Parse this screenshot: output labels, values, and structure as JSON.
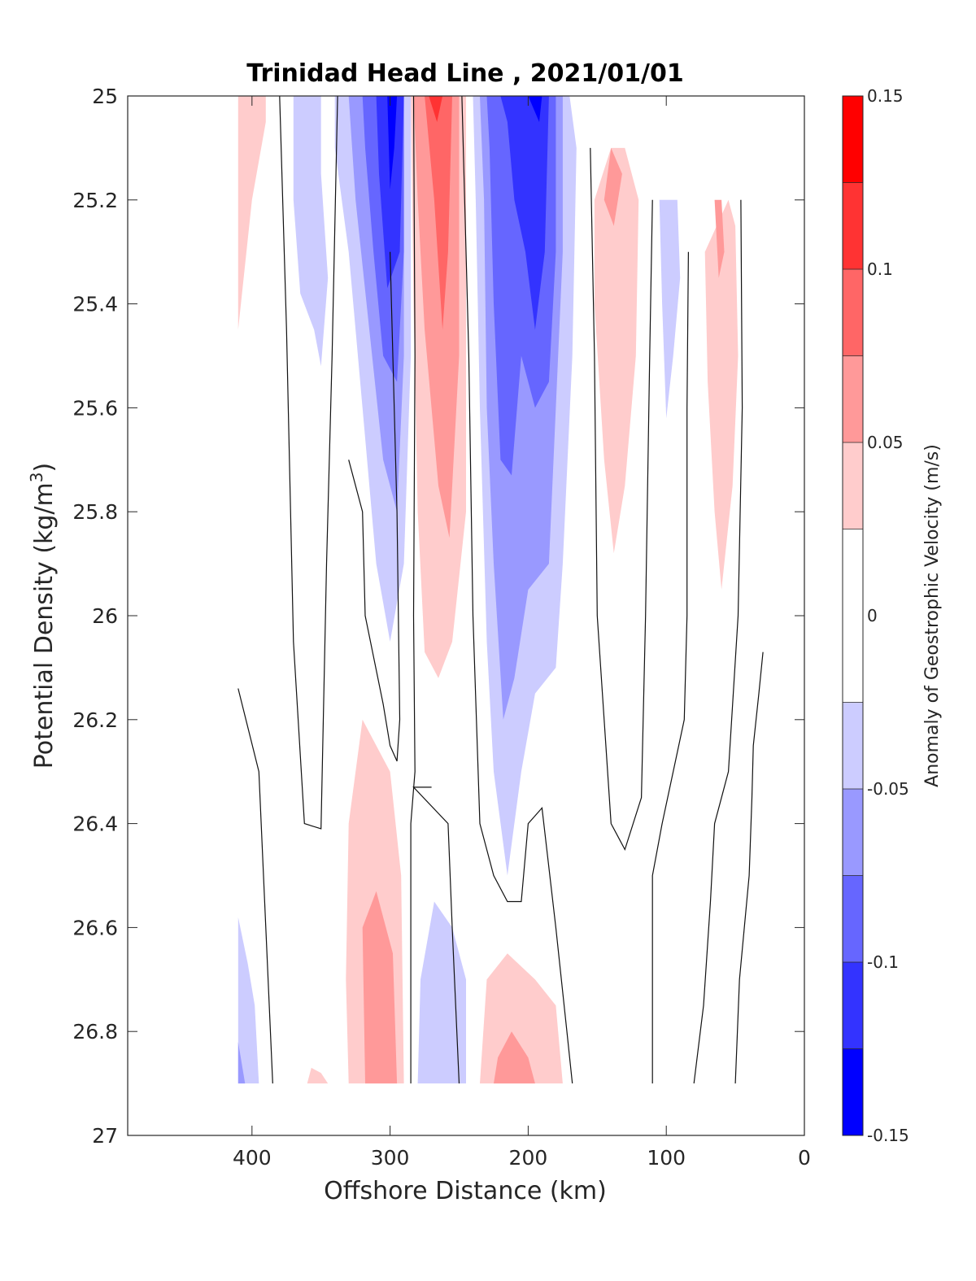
{
  "chart_data": {
    "type": "contourf",
    "title": "Trinidad Head Line , 2021/01/01",
    "xlabel": "Offshore Distance (km)",
    "ylabel_main": "Potential Density (kg/m",
    "ylabel_sup": "3",
    "ylabel_close": ")",
    "xlim": [
      490,
      0
    ],
    "x_reversed": true,
    "ylim": [
      25,
      27
    ],
    "y_reversed": true,
    "x_ticks": [
      400,
      300,
      200,
      100,
      0
    ],
    "y_ticks": [
      25,
      25.2,
      25.4,
      25.6,
      25.8,
      26,
      26.2,
      26.4,
      26.6,
      26.8,
      27
    ],
    "y_tick_labels": [
      "25",
      "25.2",
      "25.4",
      "25.6",
      "25.8",
      "26",
      "26.2",
      "26.4",
      "26.6",
      "26.8",
      "27"
    ],
    "colorbar": {
      "title": "Anomaly of Geostrophic Velocity (m/s)",
      "range": [
        -0.15,
        0.15
      ],
      "ticks": [
        0.15,
        0.1,
        0.05,
        0,
        -0.05,
        -0.1,
        -0.15
      ],
      "tick_labels": [
        "0.15",
        "0.1",
        "0.05",
        "0",
        "-0.05",
        "-0.1",
        "-0.15"
      ],
      "levels": [
        -0.15,
        -0.125,
        -0.1,
        -0.075,
        -0.05,
        -0.025,
        0.025,
        0.05,
        0.075,
        0.1,
        0.125,
        0.15
      ],
      "colors": [
        "#0000ff",
        "#3333ff",
        "#6666ff",
        "#9999ff",
        "#ccccff",
        "#ffffff",
        "#ffcccc",
        "#ff9999",
        "#ff6666",
        "#ff3333",
        "#ff0000"
      ]
    },
    "regions": [
      {
        "level": 0.0375,
        "pts": [
          [
            410,
            25
          ],
          [
            390,
            25
          ],
          [
            390,
            25.05
          ],
          [
            400,
            25.2
          ],
          [
            410,
            25.45
          ]
        ]
      },
      {
        "level": -0.0375,
        "pts": [
          [
            370,
            25
          ],
          [
            350,
            25
          ],
          [
            350,
            25.15
          ],
          [
            345,
            25.35
          ],
          [
            350,
            25.52
          ],
          [
            355,
            25.45
          ],
          [
            365,
            25.38
          ],
          [
            370,
            25.2
          ]
        ]
      },
      {
        "level": -0.0375,
        "pts": [
          [
            340,
            25
          ],
          [
            285,
            25
          ],
          [
            285,
            25.5
          ],
          [
            290,
            25.9
          ],
          [
            300,
            26.05
          ],
          [
            310,
            25.9
          ],
          [
            320,
            25.6
          ],
          [
            330,
            25.3
          ],
          [
            340,
            25.1
          ]
        ]
      },
      {
        "level": -0.0625,
        "pts": [
          [
            330,
            25
          ],
          [
            290,
            25
          ],
          [
            290,
            25.5
          ],
          [
            295,
            25.8
          ],
          [
            305,
            25.7
          ],
          [
            315,
            25.45
          ],
          [
            325,
            25.2
          ]
        ]
      },
      {
        "level": -0.0875,
        "pts": [
          [
            320,
            25
          ],
          [
            290,
            25
          ],
          [
            290,
            25.3
          ],
          [
            295,
            25.55
          ],
          [
            305,
            25.5
          ],
          [
            312,
            25.3
          ],
          [
            318,
            25.1
          ]
        ]
      },
      {
        "level": -0.1125,
        "pts": [
          [
            310,
            25
          ],
          [
            290,
            25
          ],
          [
            293,
            25.3
          ],
          [
            302,
            25.37
          ],
          [
            308,
            25.15
          ]
        ]
      },
      {
        "level": -0.1375,
        "pts": [
          [
            302,
            25
          ],
          [
            295,
            25
          ],
          [
            297,
            25.1
          ],
          [
            300,
            25.18
          ]
        ]
      },
      {
        "level": 0.0375,
        "pts": [
          [
            285,
            25
          ],
          [
            245,
            25
          ],
          [
            245,
            25.8
          ],
          [
            255,
            26.05
          ],
          [
            265,
            26.12
          ],
          [
            275,
            26.07
          ],
          [
            280,
            25.8
          ],
          [
            283,
            25.4
          ]
        ]
      },
      {
        "level": 0.0625,
        "pts": [
          [
            283,
            25
          ],
          [
            250,
            25
          ],
          [
            250,
            25.5
          ],
          [
            257,
            25.85
          ],
          [
            265,
            25.75
          ],
          [
            275,
            25.45
          ],
          [
            280,
            25.2
          ]
        ]
      },
      {
        "level": 0.0875,
        "pts": [
          [
            275,
            25
          ],
          [
            255,
            25
          ],
          [
            258,
            25.3
          ],
          [
            262,
            25.45
          ],
          [
            268,
            25.2
          ]
        ]
      },
      {
        "level": 0.1125,
        "pts": [
          [
            272,
            25
          ],
          [
            262,
            25
          ],
          [
            266,
            25.05
          ]
        ]
      },
      {
        "level": -0.0375,
        "pts": [
          [
            240,
            25
          ],
          [
            170,
            25
          ],
          [
            165,
            25.1
          ],
          [
            168,
            25.5
          ],
          [
            175,
            25.9
          ],
          [
            180,
            26.1
          ],
          [
            195,
            26.15
          ],
          [
            205,
            26.3
          ],
          [
            210,
            26.4
          ],
          [
            215,
            26.5
          ],
          [
            225,
            26.3
          ],
          [
            230,
            26.05
          ],
          [
            235,
            25.6
          ],
          [
            238,
            25.2
          ]
        ]
      },
      {
        "level": -0.0625,
        "pts": [
          [
            235,
            25
          ],
          [
            175,
            25
          ],
          [
            175,
            25.3
          ],
          [
            180,
            25.6
          ],
          [
            185,
            25.9
          ],
          [
            200,
            25.95
          ],
          [
            210,
            26.12
          ],
          [
            218,
            26.2
          ],
          [
            225,
            25.9
          ],
          [
            230,
            25.6
          ],
          [
            232,
            25.2
          ]
        ]
      },
      {
        "level": -0.0875,
        "pts": [
          [
            230,
            25
          ],
          [
            180,
            25
          ],
          [
            180,
            25.3
          ],
          [
            185,
            25.55
          ],
          [
            195,
            25.6
          ],
          [
            205,
            25.5
          ],
          [
            212,
            25.73
          ],
          [
            220,
            25.7
          ],
          [
            225,
            25.4
          ],
          [
            228,
            25.1
          ]
        ]
      },
      {
        "level": -0.1125,
        "pts": [
          [
            220,
            25
          ],
          [
            185,
            25
          ],
          [
            188,
            25.3
          ],
          [
            195,
            25.45
          ],
          [
            202,
            25.3
          ],
          [
            210,
            25.2
          ],
          [
            215,
            25.05
          ]
        ]
      },
      {
        "level": -0.1375,
        "pts": [
          [
            200,
            25
          ],
          [
            190,
            25
          ],
          [
            192,
            25.05
          ]
        ]
      },
      {
        "level": 0.0375,
        "pts": [
          [
            152,
            25.2
          ],
          [
            140,
            25.1
          ],
          [
            130,
            25.1
          ],
          [
            120,
            25.2
          ],
          [
            122,
            25.5
          ],
          [
            130,
            25.75
          ],
          [
            138,
            25.88
          ],
          [
            145,
            25.7
          ],
          [
            152,
            25.4
          ]
        ]
      },
      {
        "level": 0.0625,
        "pts": [
          [
            145,
            25.2
          ],
          [
            140,
            25.1
          ],
          [
            132,
            25.15
          ],
          [
            138,
            25.25
          ]
        ]
      },
      {
        "level": -0.0375,
        "pts": [
          [
            105,
            25.2
          ],
          [
            92,
            25.2
          ],
          [
            90,
            25.35
          ],
          [
            95,
            25.5
          ],
          [
            100,
            25.62
          ],
          [
            103,
            25.4
          ]
        ]
      },
      {
        "level": 0.0375,
        "pts": [
          [
            72,
            25.3
          ],
          [
            55,
            25.2
          ],
          [
            50,
            25.25
          ],
          [
            48,
            25.5
          ],
          [
            52,
            25.75
          ],
          [
            60,
            25.95
          ],
          [
            65,
            25.8
          ],
          [
            70,
            25.55
          ]
        ]
      },
      {
        "level": 0.0625,
        "pts": [
          [
            65,
            25.2
          ],
          [
            60,
            25.2
          ],
          [
            58,
            25.3
          ],
          [
            62,
            25.35
          ]
        ]
      },
      {
        "level": 0.0375,
        "pts": [
          [
            330,
            26.4
          ],
          [
            320,
            26.2
          ],
          [
            300,
            26.3
          ],
          [
            292,
            26.5
          ],
          [
            290,
            26.9
          ],
          [
            330,
            26.9
          ],
          [
            332,
            26.7
          ]
        ]
      },
      {
        "level": 0.0625,
        "pts": [
          [
            320,
            26.6
          ],
          [
            310,
            26.53
          ],
          [
            298,
            26.65
          ],
          [
            295,
            26.9
          ],
          [
            318,
            26.9
          ]
        ]
      },
      {
        "level": -0.0375,
        "pts": [
          [
            280,
            26.9
          ],
          [
            245,
            26.9
          ],
          [
            245,
            26.7
          ],
          [
            255,
            26.6
          ],
          [
            268,
            26.55
          ],
          [
            278,
            26.7
          ]
        ]
      },
      {
        "level": 0.0375,
        "pts": [
          [
            235,
            26.9
          ],
          [
            175,
            26.9
          ],
          [
            180,
            26.75
          ],
          [
            195,
            26.7
          ],
          [
            215,
            26.65
          ],
          [
            230,
            26.7
          ]
        ]
      },
      {
        "level": 0.0625,
        "pts": [
          [
            225,
            26.9
          ],
          [
            195,
            26.9
          ],
          [
            200,
            26.85
          ],
          [
            212,
            26.8
          ],
          [
            222,
            26.85
          ]
        ]
      },
      {
        "level": -0.0375,
        "pts": [
          [
            410,
            26.58
          ],
          [
            410,
            26.9
          ],
          [
            395,
            26.9
          ],
          [
            398,
            26.75
          ],
          [
            403,
            26.67
          ]
        ]
      },
      {
        "level": -0.0625,
        "pts": [
          [
            410,
            26.82
          ],
          [
            410,
            26.9
          ],
          [
            405,
            26.9
          ]
        ]
      },
      {
        "level": 0.0375,
        "pts": [
          [
            360,
            26.9
          ],
          [
            345,
            26.9
          ],
          [
            350,
            26.88
          ],
          [
            357,
            26.87
          ]
        ]
      }
    ],
    "contour_lines": [
      [
        [
          380,
          25
        ],
        [
          375,
          25.45
        ],
        [
          370,
          26.05
        ],
        [
          362,
          26.4
        ],
        [
          350,
          26.41
        ],
        [
          346,
          25.9
        ],
        [
          342,
          25.5
        ],
        [
          338,
          25.0
        ]
      ],
      [
        [
          410,
          26.14
        ],
        [
          395,
          26.3
        ],
        [
          390,
          26.6
        ],
        [
          385,
          26.9
        ]
      ],
      [
        [
          330,
          25.7
        ],
        [
          320,
          25.8
        ],
        [
          318,
          26.0
        ],
        [
          305,
          26.17
        ],
        [
          300,
          26.25
        ],
        [
          295,
          26.28
        ],
        [
          293,
          26.2
        ],
        [
          295,
          25.8
        ],
        [
          300,
          25.3
        ]
      ],
      [
        [
          283,
          25
        ],
        [
          282,
          25.5
        ],
        [
          283,
          26.0
        ],
        [
          282,
          26.3
        ],
        [
          285,
          26.4
        ],
        [
          285,
          26.9
        ]
      ],
      [
        [
          270,
          26.33
        ],
        [
          283,
          26.33
        ],
        [
          258,
          26.4
        ],
        [
          255,
          26.6
        ],
        [
          250,
          26.9
        ]
      ],
      [
        [
          248,
          25
        ],
        [
          243,
          25.5
        ],
        [
          240,
          26.0
        ],
        [
          235,
          26.4
        ],
        [
          225,
          26.5
        ],
        [
          215,
          26.55
        ],
        [
          205,
          26.55
        ],
        [
          200,
          26.4
        ],
        [
          190,
          26.37
        ],
        [
          180,
          26.6
        ],
        [
          172,
          26.8
        ],
        [
          168,
          26.9
        ]
      ],
      [
        [
          155,
          25.1
        ],
        [
          152,
          25.5
        ],
        [
          150,
          26.0
        ],
        [
          140,
          26.4
        ],
        [
          130,
          26.45
        ],
        [
          118,
          26.35
        ],
        [
          115,
          26.0
        ],
        [
          112,
          25.5
        ],
        [
          110,
          25.2
        ]
      ],
      [
        [
          110,
          26.9
        ],
        [
          110,
          26.5
        ],
        [
          103,
          26.4
        ],
        [
          95,
          26.3
        ],
        [
          87,
          26.2
        ],
        [
          85,
          26.0
        ],
        [
          85,
          25.6
        ],
        [
          84,
          25.3
        ]
      ],
      [
        [
          80,
          26.9
        ],
        [
          73,
          26.75
        ],
        [
          68,
          26.55
        ],
        [
          65,
          26.4
        ],
        [
          55,
          26.3
        ],
        [
          48,
          26.0
        ],
        [
          45,
          25.6
        ],
        [
          46,
          25.2
        ]
      ],
      [
        [
          50,
          26.9
        ],
        [
          47,
          26.7
        ],
        [
          40,
          26.5
        ],
        [
          38,
          26.35
        ],
        [
          37,
          26.25
        ],
        [
          33,
          26.15
        ],
        [
          30,
          26.07
        ]
      ]
    ]
  }
}
